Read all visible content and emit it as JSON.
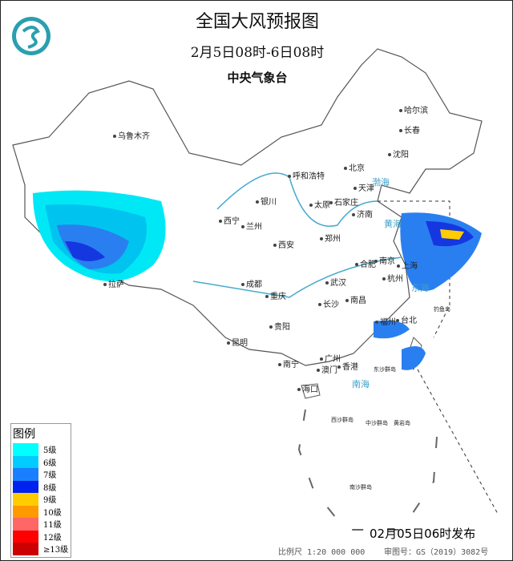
{
  "header": {
    "title": "全国大风预报图",
    "period": "2月5日08时-6日08时",
    "issuer": "中央气象台"
  },
  "cities": [
    "哈尔滨",
    "长春",
    "沈阳",
    "北京",
    "天津",
    "呼和浩特",
    "银川",
    "太原",
    "石家庄",
    "济南",
    "西宁",
    "兰州",
    "郑州",
    "西安",
    "合肥",
    "南京",
    "上海",
    "杭州",
    "成都",
    "武汉",
    "重庆",
    "长沙",
    "南昌",
    "贵阳",
    "福州",
    "台北",
    "昆明",
    "南宁",
    "广州",
    "澳门",
    "香港",
    "海口",
    "拉萨",
    "乌鲁木齐"
  ],
  "seas": [
    "渤海",
    "黄海",
    "东海",
    "南海"
  ],
  "islands": [
    "钓鱼岛",
    "东沙群岛",
    "西沙群岛",
    "中沙群岛",
    "黄岩岛",
    "南沙群岛"
  ],
  "legend": {
    "title": "图例",
    "items": [
      {
        "label": "5级",
        "color": "#00ffff"
      },
      {
        "label": "6级",
        "color": "#00ccff"
      },
      {
        "label": "7级",
        "color": "#1a7fff"
      },
      {
        "label": "8级",
        "color": "#0022ee"
      },
      {
        "label": "9级",
        "color": "#ffcc00"
      },
      {
        "label": "10级",
        "color": "#ff9900"
      },
      {
        "label": "11级",
        "color": "#ff6666"
      },
      {
        "label": "12级",
        "color": "#ff0000"
      },
      {
        "label": "≥13级",
        "color": "#cc0000"
      }
    ]
  },
  "footer": {
    "issued": "02月05日06时发布",
    "scale": "比例尺 1:20 000 000",
    "approval": "审图号：GS（2019）3082号"
  }
}
